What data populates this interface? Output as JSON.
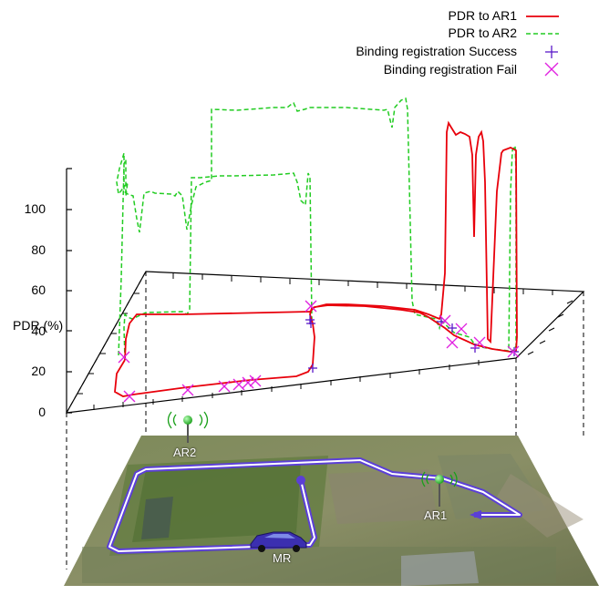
{
  "chart_data": {
    "type": "line",
    "ylabel": "PDR (%)",
    "yticks": [
      "0",
      "20",
      "40",
      "60",
      "80",
      "100"
    ],
    "ylim": [
      0,
      120
    ],
    "series": [
      {
        "name": "PDR to AR1",
        "color": "#e8000b",
        "style": "solid"
      },
      {
        "name": "PDR to AR2",
        "color": "#22cc22",
        "style": "dashed"
      },
      {
        "name": "Binding registration Success",
        "color": "#5b19c8",
        "marker": "plus"
      },
      {
        "name": "Binding registration Fail",
        "color": "#e020e0",
        "marker": "x"
      }
    ],
    "legend_position": "top-right",
    "map_labels": {
      "ar2": "AR2",
      "ar1": "AR1",
      "mr": "MR"
    },
    "annotations": "PDR drawn above a 3D-projected aerial map of the vehicle path"
  }
}
